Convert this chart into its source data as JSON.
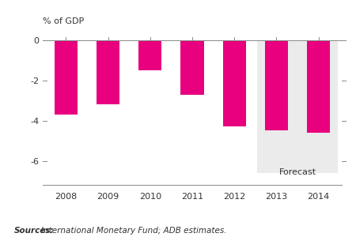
{
  "years": [
    "2008",
    "2009",
    "2010",
    "2011",
    "2012",
    "2013",
    "2014"
  ],
  "values": [
    -3.7,
    -3.2,
    -1.5,
    -2.7,
    -4.3,
    -4.5,
    -4.6
  ],
  "bar_color": "#E8007F",
  "forecast_bg_color": "#EBEBEB",
  "forecast_start_index": 5,
  "forecast_bg_bottom": -6.6,
  "ylabel": "% of GDP",
  "yticks": [
    0,
    -2,
    -4,
    -6
  ],
  "ylim": [
    -7.2,
    0.6
  ],
  "xlim": [
    -0.55,
    6.55
  ],
  "source_text": "Sources: International Monetary Fund; ADB estimates.",
  "forecast_label": "Forecast",
  "bar_width": 0.55,
  "tick_color": "#444444",
  "background_color": "#FFFFFF"
}
